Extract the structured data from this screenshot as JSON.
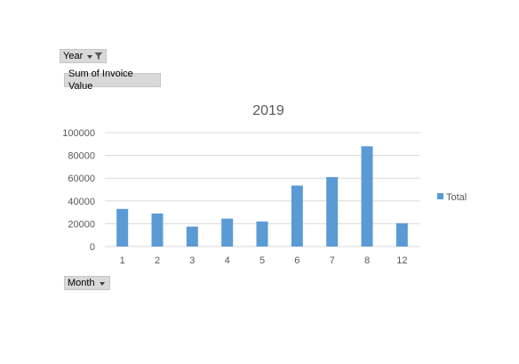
{
  "pivot": {
    "year_label": "Year",
    "sum_label": "Sum of Invoice Value",
    "month_label": "Month"
  },
  "colors": {
    "bar": "#5b9bd5",
    "grid": "#d9d9d9",
    "button_bg": "#d9d9d9"
  },
  "icons": {
    "year_dropdown": "caret-down-icon",
    "year_filter": "funnel-filter-icon",
    "month_dropdown": "caret-down-icon"
  },
  "chart_data": {
    "type": "bar",
    "title": "2019",
    "xlabel": "",
    "ylabel": "",
    "categories": [
      "1",
      "2",
      "3",
      "4",
      "5",
      "6",
      "7",
      "8",
      "12"
    ],
    "series": [
      {
        "name": "Total",
        "values": [
          33000,
          29000,
          17500,
          24500,
          22000,
          53500,
          61000,
          88000,
          20500
        ]
      }
    ],
    "ylim": [
      0,
      100000
    ],
    "yticks": [
      "0",
      "20000",
      "40000",
      "60000",
      "80000",
      "100000"
    ],
    "grid": true,
    "legend": "right"
  }
}
